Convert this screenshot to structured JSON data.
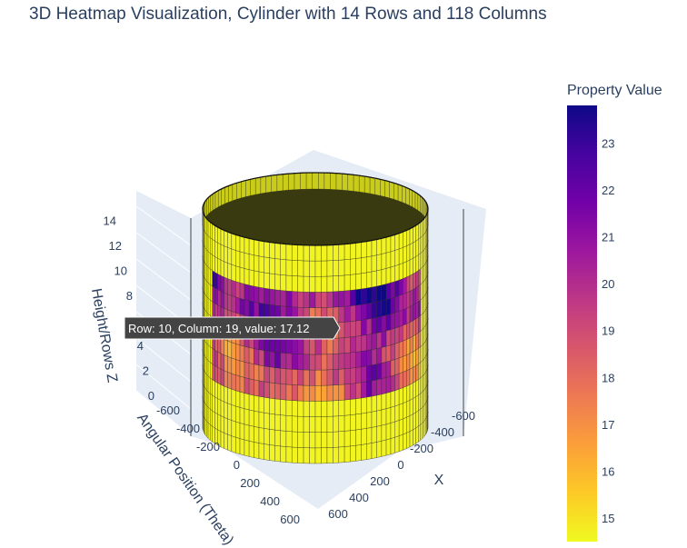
{
  "chart_data": {
    "type": "3d-cylinder-heatmap",
    "title": "3D Heatmap Visualization, Cylinder with 14 Rows and 118 Columns",
    "rows": 14,
    "columns": 118,
    "axes": {
      "x": {
        "label": "X",
        "ticks": [
          "-600",
          "-400",
          "-200",
          "0",
          "200",
          "400",
          "600"
        ]
      },
      "y": {
        "label": "Angular Position (Theta)",
        "ticks": [
          "-600",
          "-400",
          "-200",
          "0",
          "200",
          "400",
          "600"
        ]
      },
      "z": {
        "label": "Height/Rows Z",
        "ticks": [
          "0",
          "2",
          "4",
          "6",
          "8",
          "10",
          "12",
          "14"
        ],
        "range": [
          0,
          14
        ]
      }
    },
    "colorbar": {
      "title": "Property Value",
      "ticks": [
        "15",
        "16",
        "17",
        "18",
        "19",
        "20",
        "21",
        "22",
        "23"
      ],
      "range": [
        14.5,
        23.8
      ],
      "colorscale": [
        "#f0f921",
        "#fdca26",
        "#fb9f3a",
        "#ed7953",
        "#d8576b",
        "#bd3786",
        "#9c179e",
        "#7201a8",
        "#46039f",
        "#0d0887"
      ]
    },
    "heated_region": {
      "rows": [
        4,
        10
      ],
      "value_range": [
        16.5,
        23.5
      ]
    },
    "baseline_value": 14.6,
    "hover": {
      "text": "Row: 10, Column: 19, value: 17.12",
      "row": 10,
      "column": 19,
      "value": 17.12
    }
  }
}
